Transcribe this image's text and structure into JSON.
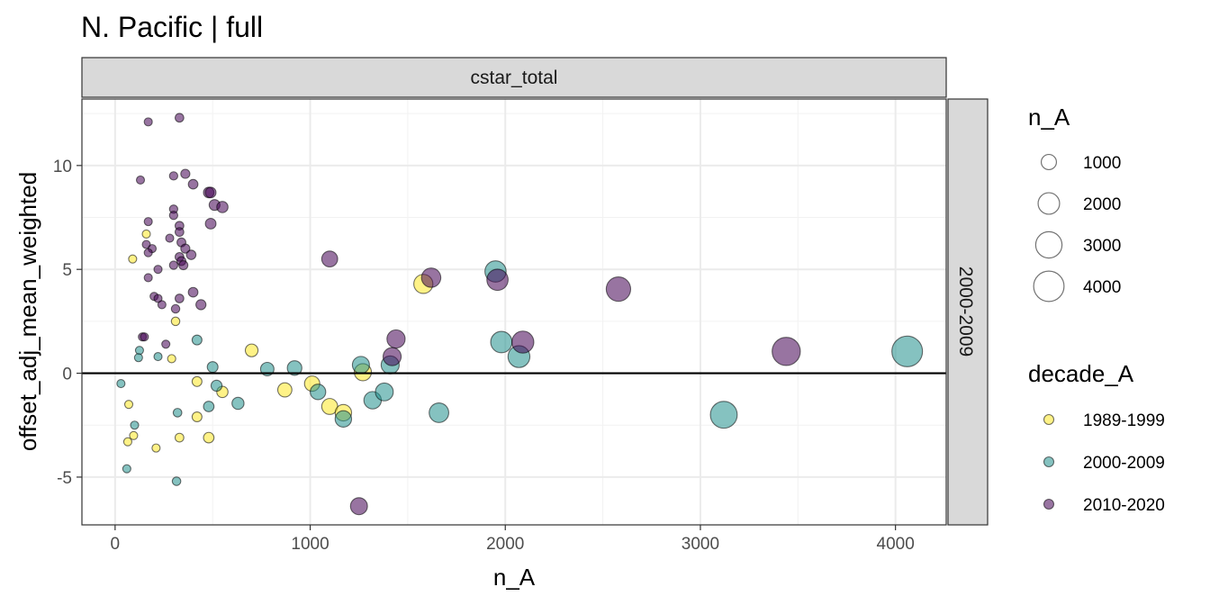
{
  "chart_data": {
    "type": "scatter",
    "title": "N. Pacific | full",
    "facet_top": "cstar_total",
    "facet_right": "2000-2009",
    "xlabel": "n_A",
    "ylabel": "offset_adj_mean_weighted",
    "xlim": [
      -170,
      4260
    ],
    "ylim": [
      -7.3,
      13.2
    ],
    "x_ticks": [
      0,
      1000,
      2000,
      3000,
      4000
    ],
    "x_tick_labels": [
      "0",
      "1000",
      "2000",
      "3000",
      "4000"
    ],
    "y_ticks": [
      -5,
      0,
      5,
      10
    ],
    "y_tick_labels": [
      "-5",
      "0",
      "5",
      "10"
    ],
    "hline": 0,
    "size_legend": {
      "title": "n_A",
      "values": [
        1000,
        2000,
        3000,
        4000
      ],
      "labels": [
        "1000",
        "2000",
        "3000",
        "4000"
      ]
    },
    "color_legend": {
      "title": "decade_A",
      "labels": [
        "1989-1999",
        "2000-2009",
        "2010-2020"
      ],
      "colors": [
        "#FDE725",
        "#21908C",
        "#440154"
      ]
    },
    "series": [
      {
        "name": "1989-1999",
        "color": "#FDE725",
        "points": [
          [
            90,
            5.5
          ],
          [
            160,
            6.7
          ],
          [
            310,
            2.5
          ],
          [
            290,
            0.7
          ],
          [
            70,
            -1.5
          ],
          [
            65,
            -3.3
          ],
          [
            95,
            -3.0
          ],
          [
            210,
            -3.6
          ],
          [
            330,
            -3.1
          ],
          [
            420,
            -2.1
          ],
          [
            480,
            -3.1
          ],
          [
            420,
            -0.4
          ],
          [
            550,
            -0.9
          ],
          [
            700,
            1.1
          ],
          [
            870,
            -0.8
          ],
          [
            1010,
            -0.5
          ],
          [
            1100,
            -1.6
          ],
          [
            1170,
            -1.9
          ],
          [
            1270,
            0.05
          ],
          [
            1580,
            4.3
          ]
        ]
      },
      {
        "name": "2000-2009",
        "color": "#21908C",
        "points": [
          [
            30,
            -0.5
          ],
          [
            100,
            -2.5
          ],
          [
            60,
            -4.6
          ],
          [
            125,
            1.1
          ],
          [
            120,
            0.75
          ],
          [
            220,
            0.8
          ],
          [
            320,
            -1.9
          ],
          [
            315,
            -5.2
          ],
          [
            420,
            1.6
          ],
          [
            480,
            -1.6
          ],
          [
            500,
            0.3
          ],
          [
            520,
            -0.6
          ],
          [
            630,
            -1.45
          ],
          [
            780,
            0.2
          ],
          [
            920,
            0.25
          ],
          [
            1040,
            -0.9
          ],
          [
            1170,
            -2.2
          ],
          [
            1260,
            0.4
          ],
          [
            1320,
            -1.3
          ],
          [
            1380,
            -0.9
          ],
          [
            1410,
            0.4
          ],
          [
            1660,
            -1.9
          ],
          [
            1950,
            4.9
          ],
          [
            1980,
            1.5
          ],
          [
            2070,
            0.8
          ],
          [
            3120,
            -2.0
          ],
          [
            4060,
            1.05
          ]
        ]
      },
      {
        "name": "2010-2020",
        "color": "#440154",
        "points": [
          [
            170,
            12.1
          ],
          [
            330,
            12.3
          ],
          [
            130,
            9.3
          ],
          [
            300,
            9.5
          ],
          [
            360,
            9.6
          ],
          [
            400,
            9.1
          ],
          [
            480,
            8.7
          ],
          [
            490,
            8.7
          ],
          [
            510,
            8.1
          ],
          [
            550,
            8.0
          ],
          [
            300,
            7.9
          ],
          [
            300,
            7.6
          ],
          [
            330,
            7.1
          ],
          [
            490,
            7.2
          ],
          [
            170,
            7.3
          ],
          [
            160,
            6.2
          ],
          [
            190,
            6.0
          ],
          [
            170,
            5.8
          ],
          [
            280,
            6.5
          ],
          [
            330,
            6.8
          ],
          [
            340,
            6.3
          ],
          [
            360,
            6.0
          ],
          [
            390,
            5.7
          ],
          [
            330,
            5.6
          ],
          [
            340,
            5.4
          ],
          [
            350,
            5.2
          ],
          [
            300,
            5.2
          ],
          [
            220,
            5.0
          ],
          [
            170,
            4.6
          ],
          [
            200,
            3.7
          ],
          [
            220,
            3.6
          ],
          [
            240,
            3.3
          ],
          [
            330,
            3.6
          ],
          [
            400,
            3.9
          ],
          [
            440,
            3.3
          ],
          [
            310,
            3.1
          ],
          [
            140,
            1.75
          ],
          [
            150,
            1.75
          ],
          [
            260,
            1.4
          ],
          [
            1100,
            5.5
          ],
          [
            1620,
            4.6
          ],
          [
            1960,
            4.5
          ],
          [
            2580,
            4.05
          ],
          [
            1420,
            0.8
          ],
          [
            1440,
            1.65
          ],
          [
            2090,
            1.5
          ],
          [
            3440,
            1.05
          ],
          [
            1250,
            -6.4
          ]
        ]
      }
    ]
  }
}
